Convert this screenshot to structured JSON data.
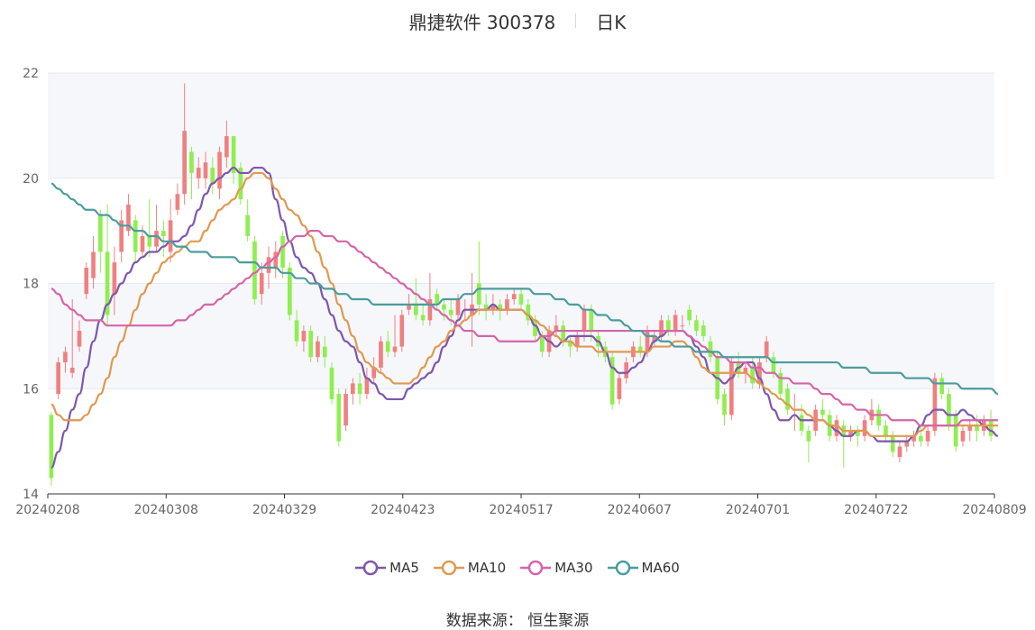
{
  "header": {
    "title": "鼎捷软件 300378",
    "period": "日K"
  },
  "footer": {
    "source_label": "数据来源：",
    "source_name": "恒生聚源"
  },
  "colors": {
    "up": "#f08080",
    "down": "#90ee50",
    "ma5": "#7e57ac",
    "ma10": "#e09a50",
    "ma30": "#d565a8",
    "ma60": "#4a9d9c",
    "band": "#f5f7fb",
    "grid": "#e4e8f0",
    "axis": "#666666"
  },
  "chart_data": {
    "type": "candlestick",
    "ylim": [
      14,
      22
    ],
    "yticks": [
      "14",
      "16",
      "18",
      "20",
      "22"
    ],
    "xticks": [
      "20240208",
      "20240308",
      "20240329",
      "20240423",
      "20240517",
      "20240607",
      "20240701",
      "20240722",
      "20240809"
    ],
    "candles": [
      [
        15.5,
        14.3,
        15.55,
        14.15
      ],
      [
        15.9,
        16.5,
        16.6,
        15.8
      ],
      [
        16.5,
        16.7,
        16.8,
        16.3
      ],
      [
        16.3,
        16.4,
        17.7,
        16.2
      ],
      [
        16.8,
        17.1,
        17.3,
        16.7
      ],
      [
        17.8,
        18.3,
        18.4,
        17.7
      ],
      [
        18.1,
        18.6,
        18.9,
        17.9
      ],
      [
        19.3,
        18.6,
        19.4,
        18.2
      ],
      [
        18.6,
        17.4,
        19.5,
        17.2
      ],
      [
        17.8,
        18.4,
        18.7,
        17.4
      ],
      [
        18.6,
        19.2,
        19.4,
        18.4
      ],
      [
        19.0,
        19.5,
        19.7,
        18.9
      ],
      [
        19.2,
        18.6,
        19.3,
        18.4
      ],
      [
        18.6,
        18.9,
        19.1,
        18.5
      ],
      [
        18.9,
        18.7,
        19.6,
        18.5
      ],
      [
        18.7,
        19.0,
        19.5,
        18.6
      ],
      [
        19.0,
        18.9,
        19.2,
        18.5
      ],
      [
        18.6,
        19.2,
        19.6,
        18.4
      ],
      [
        19.4,
        19.7,
        19.9,
        19.3
      ],
      [
        19.7,
        20.9,
        21.8,
        19.5
      ],
      [
        20.5,
        20.1,
        20.6,
        19.6
      ],
      [
        20.0,
        20.2,
        20.4,
        19.8
      ],
      [
        20.0,
        20.3,
        20.5,
        19.8
      ],
      [
        20.2,
        19.9,
        20.4,
        19.7
      ],
      [
        19.8,
        20.5,
        20.6,
        19.6
      ],
      [
        20.4,
        20.8,
        21.1,
        20.2
      ],
      [
        20.8,
        20.1,
        20.8,
        19.9
      ],
      [
        20.2,
        19.6,
        20.3,
        19.5
      ],
      [
        19.3,
        18.9,
        19.6,
        18.8
      ],
      [
        18.8,
        17.7,
        18.9,
        17.6
      ],
      [
        17.8,
        18.2,
        18.4,
        17.6
      ],
      [
        18.2,
        18.5,
        18.7,
        17.9
      ],
      [
        18.3,
        18.6,
        18.8,
        18.1
      ],
      [
        18.9,
        18.3,
        19.0,
        18.1
      ],
      [
        18.3,
        17.4,
        18.4,
        17.3
      ],
      [
        17.3,
        16.9,
        17.5,
        16.8
      ],
      [
        16.9,
        17.1,
        17.2,
        16.7
      ],
      [
        17.1,
        16.6,
        17.2,
        16.5
      ],
      [
        16.6,
        16.9,
        17.0,
        16.5
      ],
      [
        16.8,
        16.6,
        17.0,
        16.4
      ],
      [
        16.4,
        15.8,
        16.5,
        15.7
      ],
      [
        15.9,
        15.0,
        16.0,
        14.9
      ],
      [
        15.3,
        15.9,
        16.0,
        15.2
      ],
      [
        15.9,
        16.1,
        16.2,
        15.7
      ],
      [
        16.1,
        15.9,
        16.3,
        15.7
      ],
      [
        15.9,
        16.2,
        16.4,
        15.8
      ],
      [
        16.2,
        16.4,
        16.6,
        16.1
      ],
      [
        16.4,
        16.9,
        17.0,
        16.3
      ],
      [
        16.9,
        16.7,
        17.1,
        16.6
      ],
      [
        16.7,
        16.8,
        17.4,
        16.6
      ],
      [
        16.8,
        17.4,
        17.5,
        16.7
      ],
      [
        17.5,
        17.6,
        17.8,
        17.4
      ],
      [
        17.6,
        17.4,
        18.1,
        17.3
      ],
      [
        17.4,
        17.3,
        17.6,
        17.2
      ],
      [
        17.3,
        17.7,
        18.2,
        17.2
      ],
      [
        17.8,
        17.6,
        17.9,
        17.5
      ],
      [
        17.6,
        17.5,
        17.7,
        17.3
      ],
      [
        17.5,
        17.4,
        17.7,
        17.2
      ],
      [
        17.4,
        17.7,
        17.8,
        17.3
      ],
      [
        17.5,
        17.5,
        17.7,
        17.3
      ],
      [
        17.4,
        17.6,
        18.2,
        16.8
      ],
      [
        18.0,
        17.6,
        18.8,
        17.4
      ],
      [
        17.6,
        17.5,
        17.8,
        17.3
      ],
      [
        17.5,
        17.6,
        17.8,
        17.4
      ],
      [
        17.6,
        17.5,
        17.7,
        17.3
      ],
      [
        17.5,
        17.7,
        17.8,
        17.4
      ],
      [
        17.7,
        17.8,
        17.9,
        17.6
      ],
      [
        17.8,
        17.6,
        17.9,
        17.5
      ],
      [
        17.6,
        17.3,
        17.7,
        17.2
      ],
      [
        17.3,
        17.0,
        17.4,
        16.9
      ],
      [
        17.0,
        16.7,
        17.1,
        16.6
      ],
      [
        16.7,
        17.1,
        17.2,
        16.6
      ],
      [
        17.1,
        17.2,
        17.4,
        17.0
      ],
      [
        17.2,
        16.9,
        17.3,
        16.8
      ],
      [
        16.9,
        16.8,
        17.0,
        16.6
      ],
      [
        16.8,
        17.0,
        17.1,
        16.7
      ],
      [
        17.1,
        17.5,
        17.6,
        16.9
      ],
      [
        17.5,
        17.1,
        17.6,
        16.9
      ],
      [
        17.0,
        16.8,
        17.1,
        16.6
      ],
      [
        16.8,
        16.6,
        16.9,
        16.5
      ],
      [
        16.6,
        15.7,
        16.7,
        15.6
      ],
      [
        15.8,
        16.2,
        16.3,
        15.7
      ],
      [
        16.2,
        16.5,
        16.6,
        16.1
      ],
      [
        16.6,
        16.8,
        16.9,
        16.5
      ],
      [
        16.8,
        16.7,
        17.0,
        16.6
      ],
      [
        16.7,
        17.1,
        17.2,
        16.6
      ],
      [
        16.9,
        17.0,
        17.1,
        16.8
      ],
      [
        17.0,
        17.3,
        17.4,
        16.9
      ],
      [
        17.3,
        17.1,
        17.4,
        17.0
      ],
      [
        17.1,
        17.4,
        17.5,
        17.0
      ],
      [
        17.2,
        17.2,
        17.4,
        17.1
      ],
      [
        17.5,
        17.3,
        17.6,
        17.2
      ],
      [
        17.3,
        17.1,
        17.4,
        17.0
      ],
      [
        17.2,
        17.0,
        17.3,
        16.9
      ],
      [
        16.9,
        16.6,
        17.0,
        16.5
      ],
      [
        16.6,
        15.8,
        16.7,
        15.7
      ],
      [
        15.9,
        15.5,
        16.0,
        15.3
      ],
      [
        15.5,
        16.5,
        16.6,
        15.4
      ],
      [
        16.5,
        16.3,
        16.7,
        16.2
      ],
      [
        16.3,
        16.4,
        16.5,
        16.1
      ],
      [
        16.4,
        16.1,
        16.6,
        16.0
      ],
      [
        16.1,
        16.5,
        16.6,
        16.0
      ],
      [
        16.6,
        16.9,
        17.0,
        16.5
      ],
      [
        16.6,
        16.3,
        16.7,
        16.2
      ],
      [
        16.3,
        15.9,
        16.4,
        15.8
      ],
      [
        16.0,
        15.6,
        16.1,
        15.5
      ],
      [
        15.6,
        15.6,
        15.9,
        15.2
      ],
      [
        15.5,
        15.2,
        15.7,
        15.1
      ],
      [
        15.2,
        15.0,
        15.3,
        14.6
      ],
      [
        15.2,
        15.6,
        15.7,
        15.1
      ],
      [
        15.6,
        15.5,
        15.8,
        15.4
      ],
      [
        15.5,
        15.1,
        15.6,
        15.0
      ],
      [
        15.1,
        15.4,
        15.5,
        15.0
      ],
      [
        15.3,
        15.1,
        15.4,
        14.5
      ],
      [
        15.1,
        15.2,
        15.3,
        15.0
      ],
      [
        15.2,
        15.1,
        15.3,
        14.9
      ],
      [
        15.1,
        15.4,
        15.5,
        15.0
      ],
      [
        15.4,
        15.6,
        15.8,
        15.3
      ],
      [
        15.6,
        15.3,
        15.7,
        15.2
      ],
      [
        15.3,
        15.1,
        15.4,
        15.0
      ],
      [
        15.1,
        14.8,
        15.2,
        14.7
      ],
      [
        14.7,
        14.9,
        15.0,
        14.6
      ],
      [
        14.9,
        15.0,
        15.1,
        14.8
      ],
      [
        15.0,
        15.1,
        15.2,
        14.9
      ],
      [
        15.1,
        15.0,
        15.3,
        14.9
      ],
      [
        15.0,
        15.2,
        15.3,
        14.9
      ],
      [
        15.2,
        16.2,
        16.3,
        15.1
      ],
      [
        16.2,
        15.9,
        16.3,
        15.8
      ],
      [
        15.9,
        15.3,
        16.0,
        15.2
      ],
      [
        15.5,
        14.9,
        15.6,
        14.8
      ],
      [
        15.0,
        15.2,
        15.3,
        14.9
      ],
      [
        15.2,
        15.3,
        15.4,
        15.0
      ],
      [
        15.3,
        15.2,
        15.5,
        15.0
      ],
      [
        15.2,
        15.4,
        15.5,
        15.1
      ],
      [
        15.4,
        15.1,
        15.6,
        15.0
      ]
    ],
    "series": [
      {
        "name": "MA5",
        "values": [
          14.5,
          14.8,
          15.2,
          15.6,
          15.9,
          16.4,
          16.9,
          17.3,
          17.6,
          17.8,
          18.0,
          18.2,
          18.4,
          18.5,
          18.6,
          18.6,
          18.7,
          18.8,
          18.8,
          18.9,
          19.1,
          19.4,
          19.7,
          19.9,
          20.0,
          20.1,
          20.2,
          20.1,
          20.1,
          20.2,
          20.2,
          20.1,
          19.6,
          19.2,
          18.8,
          18.5,
          18.3,
          18.2,
          18.0,
          17.7,
          17.4,
          17.1,
          16.9,
          16.8,
          16.5,
          16.2,
          16.1,
          15.9,
          15.8,
          15.8,
          15.8,
          16.0,
          16.1,
          16.2,
          16.3,
          16.5,
          16.8,
          17.0,
          17.3,
          17.5,
          17.5,
          17.5,
          17.5,
          17.6,
          17.5,
          17.5,
          17.5,
          17.5,
          17.4,
          17.2,
          17.0,
          16.9,
          16.8,
          16.9,
          17.0,
          17.0,
          17.0,
          17.0,
          16.9,
          16.7,
          16.4,
          16.3,
          16.3,
          16.4,
          16.5,
          16.7,
          16.9,
          17.0,
          17.1,
          17.1,
          17.1,
          17.0,
          16.8,
          16.6,
          16.3,
          16.2,
          16.1,
          16.2,
          16.4,
          16.5,
          16.5,
          16.2,
          15.9,
          15.6,
          15.4,
          15.4,
          15.5,
          15.4,
          15.4,
          15.4,
          15.4,
          15.3,
          15.2,
          15.1,
          15.1,
          15.2,
          15.2,
          15.1,
          15.0,
          15.0,
          15.0,
          15.0,
          15.0,
          15.1,
          15.3,
          15.5,
          15.6,
          15.6,
          15.5,
          15.5,
          15.6,
          15.5,
          15.4,
          15.3,
          15.2,
          15.1
        ]
      },
      {
        "name": "MA10",
        "values": [
          15.7,
          15.5,
          15.4,
          15.4,
          15.4,
          15.5,
          15.7,
          15.9,
          16.2,
          16.6,
          16.9,
          17.2,
          17.5,
          17.8,
          18.0,
          18.2,
          18.4,
          18.5,
          18.6,
          18.7,
          18.8,
          18.8,
          19.0,
          19.2,
          19.4,
          19.5,
          19.6,
          19.8,
          20.0,
          20.1,
          20.1,
          20.0,
          19.8,
          19.6,
          19.4,
          19.3,
          19.1,
          18.9,
          18.6,
          18.3,
          18.0,
          17.6,
          17.3,
          17.0,
          16.7,
          16.5,
          16.4,
          16.3,
          16.2,
          16.1,
          16.1,
          16.1,
          16.2,
          16.4,
          16.6,
          16.8,
          16.9,
          17.1,
          17.2,
          17.3,
          17.4,
          17.5,
          17.5,
          17.5,
          17.5,
          17.5,
          17.5,
          17.5,
          17.4,
          17.3,
          17.2,
          17.1,
          17.0,
          16.9,
          16.9,
          16.8,
          16.8,
          16.8,
          16.7,
          16.7,
          16.7,
          16.7,
          16.7,
          16.7,
          16.7,
          16.7,
          16.8,
          16.8,
          16.8,
          16.9,
          16.9,
          16.8,
          16.6,
          16.4,
          16.3,
          16.3,
          16.3,
          16.3,
          16.3,
          16.3,
          16.2,
          16.1,
          16.0,
          15.9,
          15.8,
          15.7,
          15.6,
          15.6,
          15.5,
          15.4,
          15.4,
          15.3,
          15.3,
          15.2,
          15.2,
          15.2,
          15.2,
          15.1,
          15.1,
          15.1,
          15.1,
          15.1,
          15.1,
          15.1,
          15.2,
          15.3,
          15.3,
          15.3,
          15.3,
          15.3,
          15.3,
          15.3,
          15.3,
          15.3,
          15.3,
          15.3
        ]
      },
      {
        "name": "MA30",
        "values": [
          17.9,
          17.8,
          17.6,
          17.5,
          17.4,
          17.3,
          17.3,
          17.3,
          17.2,
          17.2,
          17.2,
          17.2,
          17.2,
          17.2,
          17.2,
          17.2,
          17.2,
          17.2,
          17.3,
          17.3,
          17.4,
          17.5,
          17.6,
          17.6,
          17.7,
          17.8,
          17.9,
          18.0,
          18.1,
          18.2,
          18.3,
          18.4,
          18.5,
          18.7,
          18.8,
          18.9,
          18.9,
          19.0,
          19.0,
          18.9,
          18.9,
          18.8,
          18.8,
          18.7,
          18.6,
          18.5,
          18.4,
          18.3,
          18.2,
          18.1,
          18.0,
          17.9,
          17.8,
          17.7,
          17.6,
          17.5,
          17.4,
          17.3,
          17.2,
          17.1,
          17.1,
          17.0,
          17.0,
          17.0,
          16.9,
          16.9,
          16.9,
          16.9,
          16.9,
          16.9,
          17.0,
          17.0,
          17.1,
          17.1,
          17.1,
          17.1,
          17.1,
          17.1,
          17.1,
          17.1,
          17.1,
          17.1,
          17.1,
          17.1,
          17.1,
          17.1,
          17.1,
          17.1,
          17.1,
          17.1,
          17.1,
          17.0,
          16.9,
          16.8,
          16.7,
          16.6,
          16.6,
          16.5,
          16.5,
          16.5,
          16.4,
          16.4,
          16.3,
          16.3,
          16.2,
          16.2,
          16.1,
          16.1,
          16.1,
          16.0,
          15.9,
          15.9,
          15.8,
          15.7,
          15.7,
          15.6,
          15.6,
          15.5,
          15.5,
          15.5,
          15.4,
          15.4,
          15.4,
          15.4,
          15.3,
          15.3,
          15.3,
          15.3,
          15.3,
          15.3,
          15.4,
          15.4,
          15.4,
          15.4,
          15.4,
          15.4
        ]
      },
      {
        "name": "MA60",
        "values": [
          19.9,
          19.8,
          19.7,
          19.6,
          19.5,
          19.4,
          19.4,
          19.3,
          19.3,
          19.2,
          19.1,
          19.1,
          19.0,
          19.0,
          18.9,
          18.9,
          18.8,
          18.8,
          18.7,
          18.7,
          18.6,
          18.6,
          18.6,
          18.5,
          18.5,
          18.5,
          18.5,
          18.4,
          18.4,
          18.4,
          18.3,
          18.3,
          18.3,
          18.2,
          18.2,
          18.1,
          18.1,
          18.0,
          18.0,
          17.9,
          17.9,
          17.8,
          17.8,
          17.7,
          17.7,
          17.7,
          17.6,
          17.6,
          17.6,
          17.6,
          17.6,
          17.6,
          17.6,
          17.6,
          17.6,
          17.6,
          17.7,
          17.7,
          17.7,
          17.8,
          17.8,
          17.9,
          17.9,
          17.9,
          17.9,
          17.9,
          17.9,
          17.9,
          17.9,
          17.8,
          17.8,
          17.8,
          17.7,
          17.7,
          17.6,
          17.6,
          17.5,
          17.5,
          17.4,
          17.4,
          17.3,
          17.3,
          17.2,
          17.1,
          17.1,
          17.0,
          17.0,
          16.9,
          16.9,
          16.8,
          16.8,
          16.8,
          16.7,
          16.7,
          16.7,
          16.7,
          16.6,
          16.6,
          16.6,
          16.6,
          16.6,
          16.6,
          16.6,
          16.5,
          16.5,
          16.5,
          16.5,
          16.5,
          16.5,
          16.5,
          16.5,
          16.5,
          16.5,
          16.4,
          16.4,
          16.4,
          16.4,
          16.3,
          16.3,
          16.3,
          16.3,
          16.3,
          16.2,
          16.2,
          16.2,
          16.2,
          16.1,
          16.1,
          16.1,
          16.1,
          16.0,
          16.0,
          16.0,
          16.0,
          16.0,
          15.9
        ]
      }
    ],
    "legend": [
      "MA5",
      "MA10",
      "MA30",
      "MA60"
    ],
    "legend_position": "bottom-center",
    "grid": true
  }
}
